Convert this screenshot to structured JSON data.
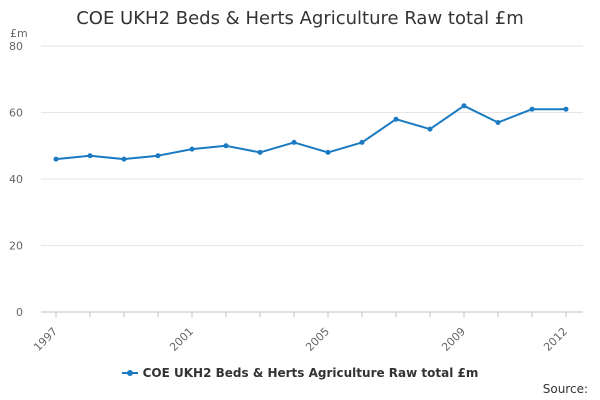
{
  "colors": {
    "series": "#1a7ac2",
    "grid": "#e6e6e6",
    "axis": "#c0c0c0"
  },
  "legend": {
    "label": "COE UKH2 Beds & Herts Agriculture Raw total £m"
  },
  "source_label": "Source:",
  "chart_data": {
    "type": "line",
    "title": "COE UKH2 Beds & Herts Agriculture Raw total £m",
    "ylabel": "£m",
    "xlabel": "",
    "ylim": [
      0,
      80
    ],
    "y_ticks": [
      0,
      20,
      40,
      60,
      80
    ],
    "x_ticks": [
      "1997",
      "2001",
      "2005",
      "2009",
      "2012"
    ],
    "grid": true,
    "legend_position": "bottom",
    "x": [
      1997,
      1998,
      1999,
      2000,
      2001,
      2002,
      2003,
      2004,
      2005,
      2006,
      2007,
      2008,
      2009,
      2010,
      2011,
      2012
    ],
    "series": [
      {
        "name": "COE UKH2 Beds & Herts Agriculture Raw total £m",
        "values": [
          46,
          47,
          46,
          47,
          49,
          50,
          48,
          51,
          48,
          51,
          58,
          55,
          62,
          57,
          61,
          61
        ]
      }
    ]
  }
}
